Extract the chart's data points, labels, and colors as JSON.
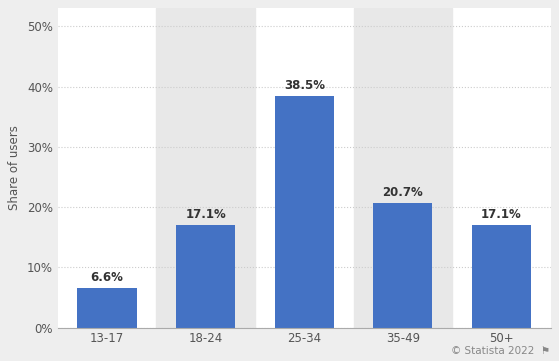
{
  "categories": [
    "13-17",
    "18-24",
    "25-34",
    "35-49",
    "50+"
  ],
  "values": [
    6.6,
    17.1,
    38.5,
    20.7,
    17.1
  ],
  "bar_color": "#4472c4",
  "figure_bg_color": "#eeeeee",
  "plot_bg_color": "#ffffff",
  "ylabel": "Share of users",
  "yticks": [
    0,
    10,
    20,
    30,
    40,
    50
  ],
  "ylim": [
    0,
    53
  ],
  "grid_color": "#cccccc",
  "tick_fontsize": 8.5,
  "value_fontsize": 8.5,
  "bar_width": 0.6,
  "watermark": "© Statista 2022",
  "watermark_fontsize": 7.5,
  "watermark_color": "#888888",
  "ylabel_fontsize": 8.5,
  "tick_label_color": "#555555",
  "value_label_color": "#333333",
  "band_color": "#e8e8e8",
  "band_indices": [
    1,
    3
  ]
}
